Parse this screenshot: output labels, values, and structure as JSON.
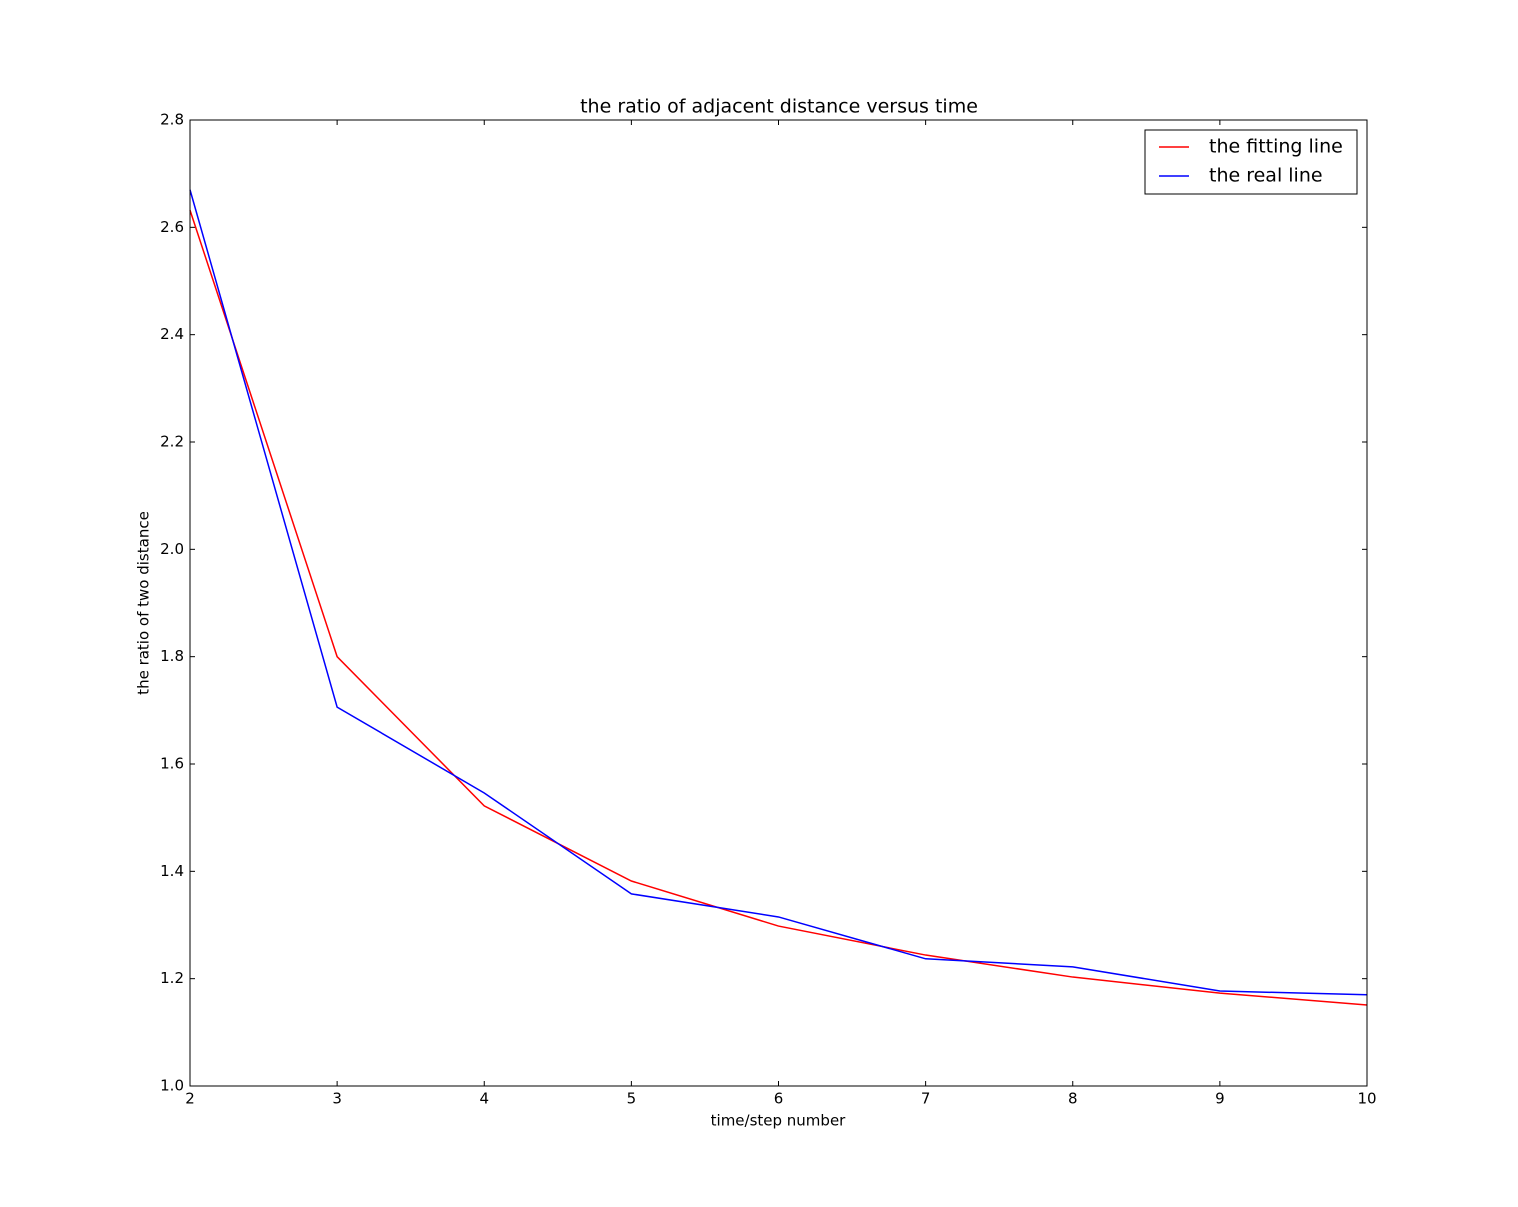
{
  "chart_data": {
    "type": "line",
    "title": "the ratio of adjacent distance versus time",
    "xlabel": "time/step number",
    "ylabel": "the ratio of two distance",
    "x": [
      2,
      3,
      4,
      5,
      6,
      7,
      8,
      9,
      10
    ],
    "series": [
      {
        "name": "the fitting line",
        "color": "#ff0000",
        "values": [
          2.632,
          1.8,
          1.522,
          1.382,
          1.298,
          1.244,
          1.203,
          1.173,
          1.151
        ]
      },
      {
        "name": "the real line",
        "color": "#0000ff",
        "values": [
          2.67,
          1.706,
          1.546,
          1.358,
          1.315,
          1.237,
          1.222,
          1.177,
          1.17
        ]
      }
    ],
    "xlim": [
      2,
      10
    ],
    "xticks": [
      2,
      3,
      4,
      5,
      6,
      7,
      8,
      9,
      10
    ],
    "ylim": [
      1.0,
      2.8
    ],
    "yticks": [
      {
        "value": 1.0,
        "label": "1.0"
      },
      {
        "value": 1.2,
        "label": "1.2"
      },
      {
        "value": 1.4,
        "label": "1.4"
      },
      {
        "value": 1.6,
        "label": "1.6"
      },
      {
        "value": 1.8,
        "label": "1.8"
      },
      {
        "value": 2.0,
        "label": "2.0"
      },
      {
        "value": 2.2,
        "label": "2.2"
      },
      {
        "value": 2.4,
        "label": "2.4"
      },
      {
        "value": 2.6,
        "label": "2.6"
      },
      {
        "value": 2.8,
        "label": "2.8"
      }
    ],
    "grid": false,
    "legend": "upper right"
  }
}
